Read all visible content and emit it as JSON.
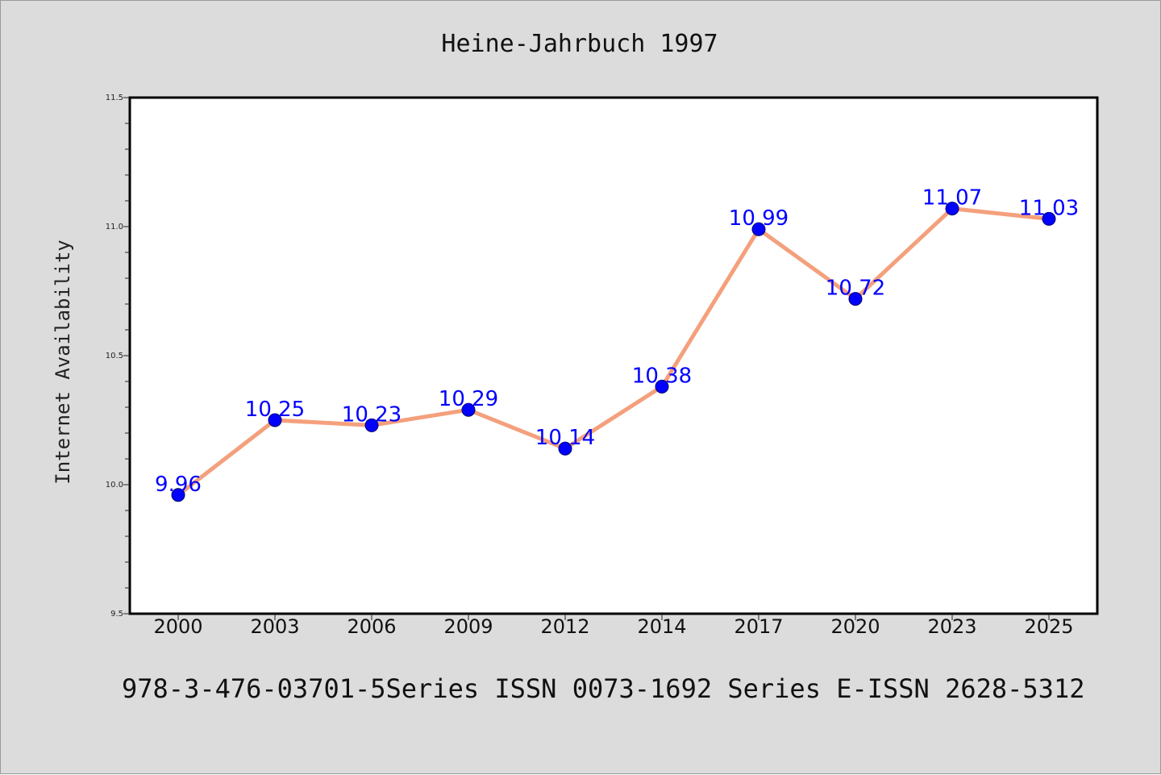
{
  "chart_data": {
    "type": "line",
    "title": "Heine-Jahrbuch 1997",
    "ylabel": "Internet Availability",
    "xlabel": "",
    "categories": [
      "2000",
      "2003",
      "2006",
      "2009",
      "2012",
      "2014",
      "2017",
      "2020",
      "2023",
      "2025"
    ],
    "values": [
      9.96,
      10.25,
      10.23,
      10.29,
      10.14,
      10.38,
      10.99,
      10.72,
      11.07,
      11.03
    ],
    "data_labels": [
      "9.96",
      "10.25",
      "10.23",
      "10.29",
      "10.14",
      "10.38",
      "10.99",
      "10.72",
      "11.07",
      "11.03"
    ],
    "ylim": [
      9.5,
      11.5
    ],
    "y_ticks": [
      "9.5",
      "10.0",
      "10.5",
      "11.0",
      "11.5"
    ],
    "grid": false,
    "line_color": "#f4a07c",
    "marker_color": "#0000ff",
    "label_color": "#0000ff",
    "footer": "978-3-476-03701-5Series ISSN 0073-1692 Series E-ISSN 2628-5312"
  }
}
